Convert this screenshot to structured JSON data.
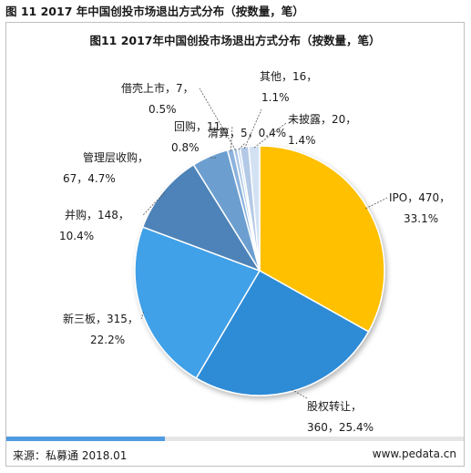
{
  "figure_caption": "图 11 2017 年中国创投市场退出方式分布（按数量，笔）",
  "chart_data": {
    "type": "pie",
    "title": "图11 2017年中国创投市场退出方式分布（按数量，笔）",
    "slices": [
      {
        "name": "IPO",
        "value": 470,
        "percent": "33.1%",
        "color": "#FFC000"
      },
      {
        "name": "股权转让",
        "value": 360,
        "percent": "25.4%",
        "color": "#2E8BD6"
      },
      {
        "name": "新三板",
        "value": 315,
        "percent": "22.2%",
        "color": "#3FA0E8"
      },
      {
        "name": "并购",
        "value": 148,
        "percent": "10.4%",
        "color": "#4E83B8"
      },
      {
        "name": "管理层收购",
        "value": 67,
        "percent": "4.7%",
        "color": "#6C9FCF"
      },
      {
        "name": "回购",
        "value": 11,
        "percent": "0.8%",
        "color": "#8DB3DC"
      },
      {
        "name": "借壳上市",
        "value": 7,
        "percent": "0.5%",
        "color": "#A9C5E4"
      },
      {
        "name": "清算",
        "value": 5,
        "percent": "0.4%",
        "color": "#C2D6EC"
      },
      {
        "name": "其他",
        "value": 16,
        "percent": "1.1%",
        "color": "#B3C9E6"
      },
      {
        "name": "未披露",
        "value": 20,
        "percent": "1.4%",
        "color": "#D3E2F3"
      }
    ],
    "labels": [
      {
        "line1": "IPO，470，",
        "line2": "33.1%"
      },
      {
        "line1": "股权转让，",
        "line2": "360，25.4%"
      },
      {
        "line1": "新三板，315，",
        "line2": "22.2%"
      },
      {
        "line1": "并购，148，",
        "line2": "10.4%"
      },
      {
        "line1": "管理层收购，",
        "line2": "67，4.7%"
      },
      {
        "line1": "回购，11，",
        "line2": "0.8%"
      },
      {
        "line1": "借壳上市，7，",
        "line2": "0.5%"
      },
      {
        "line1": "清算，5，0.4%",
        "line2": ""
      },
      {
        "line1": "其他，16，",
        "line2": "1.1%"
      },
      {
        "line1": "未披露，20，",
        "line2": "1.4%"
      }
    ]
  },
  "footer": {
    "source": "来源：私募通 2018.01",
    "website": "www.pedata.cn"
  }
}
